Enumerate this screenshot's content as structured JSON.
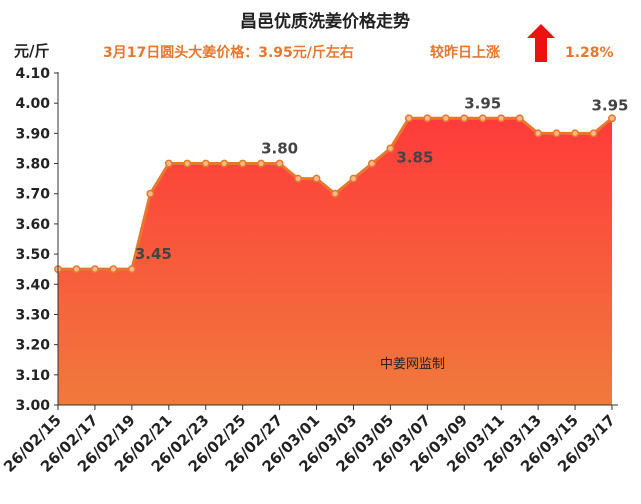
{
  "chart_data": {
    "type": "area",
    "title": "昌邑优质洗姜价格走势",
    "subtitle": "3月17日圆头大姜价格：3.95元/斤左右",
    "change_label": "较昨日上涨",
    "change_value": "1.28%",
    "ylabel": "元/斤",
    "ylim": [
      3.0,
      4.1
    ],
    "ytick_step": 0.1,
    "grid": false,
    "watermark": "中姜网监制",
    "x": [
      "26/02/15",
      "26/02/16",
      "26/02/17",
      "26/02/18",
      "26/02/19",
      "26/02/20",
      "26/02/21",
      "26/02/22",
      "26/02/23",
      "26/02/24",
      "26/02/25",
      "26/02/26",
      "26/02/27",
      "26/02/28",
      "26/03/01",
      "26/03/02",
      "26/03/03",
      "26/03/04",
      "26/03/05",
      "26/03/06",
      "26/03/07",
      "26/03/08",
      "26/03/09",
      "26/03/10",
      "26/03/11",
      "26/03/12",
      "26/03/13",
      "26/03/14",
      "26/03/15",
      "26/03/16",
      "26/03/17"
    ],
    "xtick_labels": [
      "26/02/15",
      "26/02/17",
      "26/02/19",
      "26/02/21",
      "26/02/23",
      "26/02/25",
      "26/02/27",
      "26/03/01",
      "26/03/03",
      "26/03/05",
      "26/03/07",
      "26/03/09",
      "26/03/11",
      "26/03/13",
      "26/03/15",
      "26/03/17"
    ],
    "series": [
      {
        "values": [
          3.45,
          3.45,
          3.45,
          3.45,
          3.45,
          3.7,
          3.8,
          3.8,
          3.8,
          3.8,
          3.8,
          3.8,
          3.8,
          3.75,
          3.75,
          3.7,
          3.75,
          3.8,
          3.85,
          3.95,
          3.95,
          3.95,
          3.95,
          3.95,
          3.95,
          3.95,
          3.9,
          3.9,
          3.9,
          3.9,
          3.95
        ]
      }
    ],
    "data_labels": [
      {
        "index": 4,
        "text": "3.45"
      },
      {
        "index": 12,
        "text": "3.80"
      },
      {
        "index": 18,
        "text": "3.85"
      },
      {
        "index": 23,
        "text": "3.95"
      },
      {
        "index": 30,
        "text": "3.95"
      }
    ],
    "colors": {
      "area_top": "#ff3b3b",
      "area_bottom": "#f07a3c",
      "line": "#e8772e",
      "marker_fill": "#f6b88c",
      "arrow": "#ee1111"
    }
  }
}
